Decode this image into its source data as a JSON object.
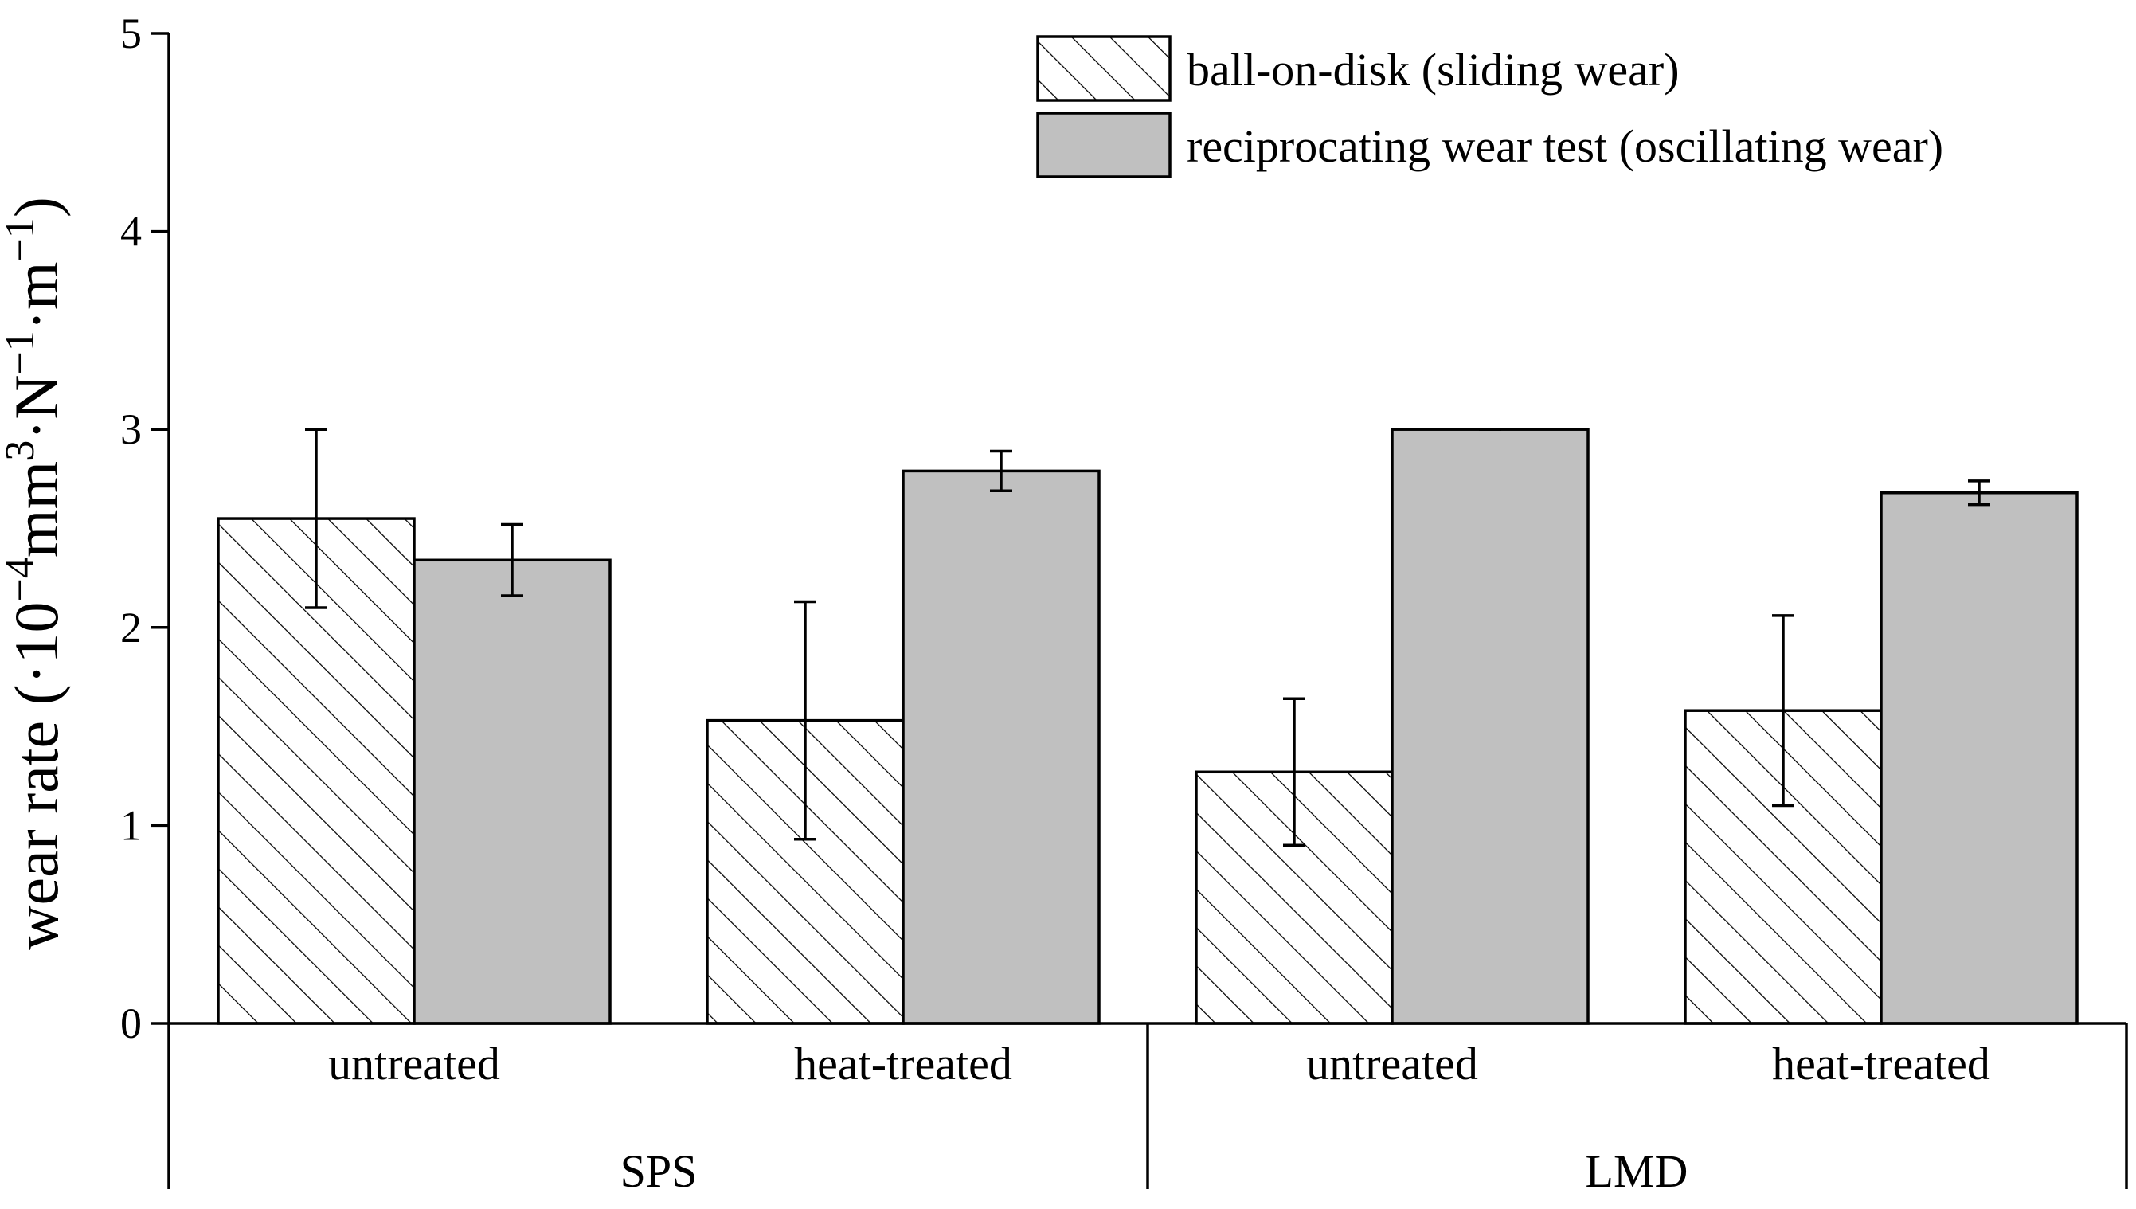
{
  "chart_data": {
    "type": "bar",
    "title": "",
    "ylabel_parts": {
      "base": "wear rate (·10",
      "exp1": "−4",
      "mid1": "mm",
      "exp2": "3",
      "mid2": "·N",
      "exp3": "−1",
      "mid3": "·m",
      "exp4": "−1",
      "end": ")"
    },
    "ylim": [
      0,
      5
    ],
    "yticks": [
      "0",
      "1",
      "2",
      "3",
      "4",
      "5"
    ],
    "groups": [
      {
        "label": "SPS",
        "categories": [
          "untreated",
          "heat-treated"
        ]
      },
      {
        "label": "LMD",
        "categories": [
          "untreated",
          "heat-treated"
        ]
      }
    ],
    "categories": [
      "untreated",
      "heat-treated",
      "untreated",
      "heat-treated"
    ],
    "series": [
      {
        "name": "ball-on-disk (sliding wear)",
        "pattern": "hatched",
        "values": [
          2.55,
          1.53,
          1.27,
          1.58
        ],
        "errors": [
          0.45,
          0.6,
          0.37,
          0.48
        ]
      },
      {
        "name": "reciprocating wear test (oscillating wear)",
        "pattern": "solid",
        "color": "#c0c0c0",
        "values": [
          2.34,
          2.79,
          3.0,
          2.68
        ],
        "errors": [
          0.18,
          0.1,
          0.0,
          0.06
        ]
      }
    ],
    "legend_position": "top-right",
    "grid": false
  }
}
